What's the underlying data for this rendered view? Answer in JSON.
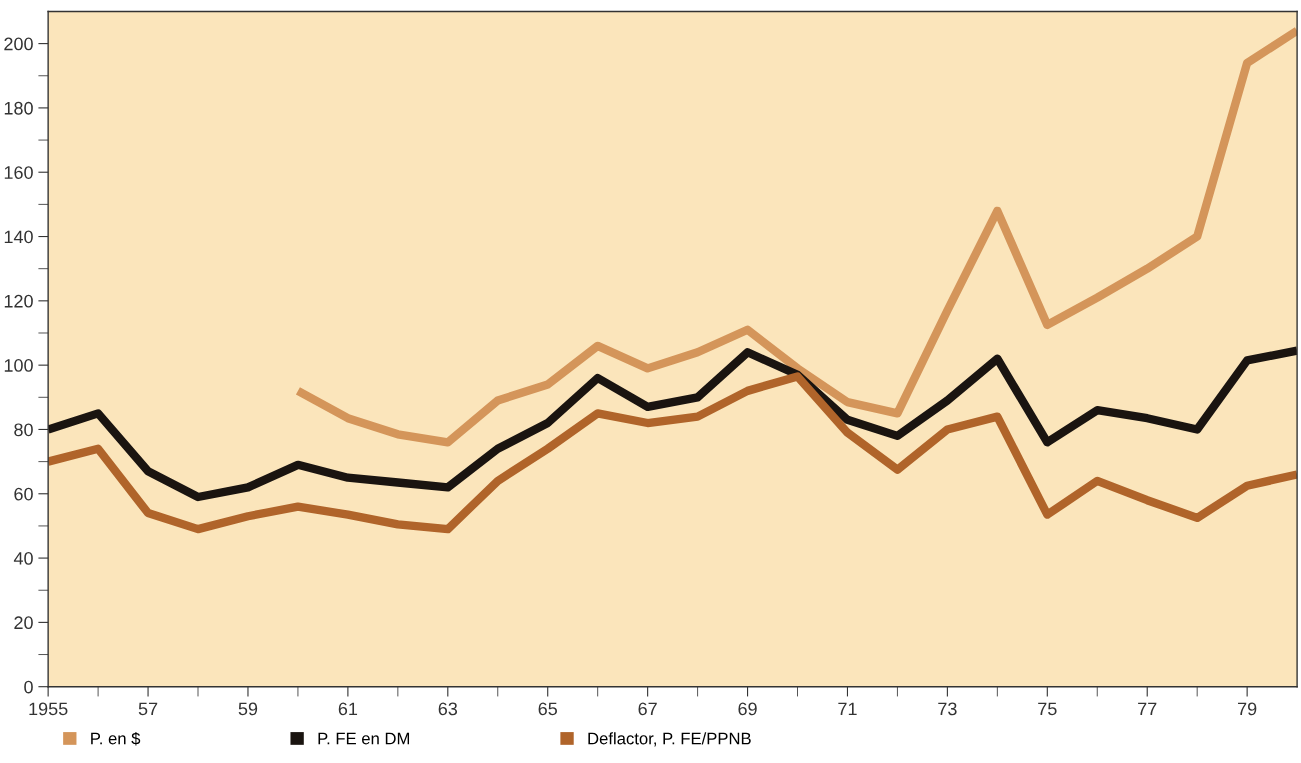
{
  "chart_data": {
    "type": "line",
    "x": [
      1955,
      1956,
      1957,
      1958,
      1959,
      1960,
      1961,
      1962,
      1963,
      1964,
      1965,
      1966,
      1967,
      1968,
      1969,
      1970,
      1971,
      1972,
      1973,
      1974,
      1975,
      1976,
      1977,
      1978,
      1979,
      1980
    ],
    "series": [
      {
        "name": "P. en $",
        "color": "#d4955a",
        "x": [
          1960,
          1961,
          1962,
          1963,
          1964,
          1965,
          1966,
          1967,
          1968,
          1969,
          1970,
          1971,
          1972,
          1973,
          1974,
          1975,
          1976,
          1977,
          1978,
          1979,
          1980
        ],
        "values": [
          92,
          83.5,
          78.5,
          76,
          89,
          94,
          106,
          99,
          104,
          111,
          99,
          88.5,
          85,
          117,
          148,
          112.5,
          121,
          130,
          140,
          194,
          204
        ]
      },
      {
        "name": "P. FE en DM",
        "color": "#1a1410",
        "values": [
          80,
          85,
          67,
          59,
          62,
          69,
          65,
          63.5,
          62,
          74,
          82,
          96,
          87,
          90,
          104,
          97,
          83,
          78,
          89,
          102,
          76,
          86,
          83.5,
          80,
          101.5,
          104.5
        ]
      },
      {
        "name": "Deflactor, P. FE/PPNB",
        "color": "#b0642a",
        "values": [
          70,
          74,
          54,
          49,
          53,
          56,
          53.5,
          50.5,
          49,
          64,
          74,
          85,
          82,
          84,
          92,
          96.5,
          79,
          67.5,
          80,
          84,
          53.5,
          64,
          58,
          52.5,
          62.5,
          66
        ]
      }
    ],
    "xlim": [
      1955,
      1980
    ],
    "xticks": [
      {
        "value": 1955,
        "label": "1955"
      },
      {
        "value": 1956,
        "label": null
      },
      {
        "value": 1957,
        "label": "57"
      },
      {
        "value": 1958,
        "label": null
      },
      {
        "value": 1959,
        "label": "59"
      },
      {
        "value": 1960,
        "label": null
      },
      {
        "value": 1961,
        "label": "61"
      },
      {
        "value": 1962,
        "label": null
      },
      {
        "value": 1963,
        "label": "63"
      },
      {
        "value": 1964,
        "label": null
      },
      {
        "value": 1965,
        "label": "65"
      },
      {
        "value": 1966,
        "label": null
      },
      {
        "value": 1967,
        "label": "67"
      },
      {
        "value": 1968,
        "label": null
      },
      {
        "value": 1969,
        "label": "69"
      },
      {
        "value": 1970,
        "label": null
      },
      {
        "value": 1971,
        "label": "71"
      },
      {
        "value": 1972,
        "label": null
      },
      {
        "value": 1973,
        "label": "73"
      },
      {
        "value": 1974,
        "label": null
      },
      {
        "value": 1975,
        "label": "75"
      },
      {
        "value": 1976,
        "label": null
      },
      {
        "value": 1977,
        "label": "77"
      },
      {
        "value": 1978,
        "label": null
      },
      {
        "value": 1979,
        "label": "79"
      }
    ],
    "ylim": [
      0,
      210
    ],
    "yticks": [
      0,
      {
        "value": 10,
        "label": null
      },
      20,
      {
        "value": 30,
        "label": null
      },
      40,
      {
        "value": 50,
        "label": null
      },
      60,
      {
        "value": 70,
        "label": null
      },
      80,
      {
        "value": 90,
        "label": null
      },
      100,
      {
        "value": 110,
        "label": null
      },
      120,
      {
        "value": 130,
        "label": null
      },
      140,
      {
        "value": 150,
        "label": null
      },
      160,
      {
        "value": 170,
        "label": null
      },
      180,
      {
        "value": 190,
        "label": null
      },
      200
    ],
    "grid": false,
    "legend": "bottom",
    "marker": "none",
    "line_style": "solid"
  }
}
